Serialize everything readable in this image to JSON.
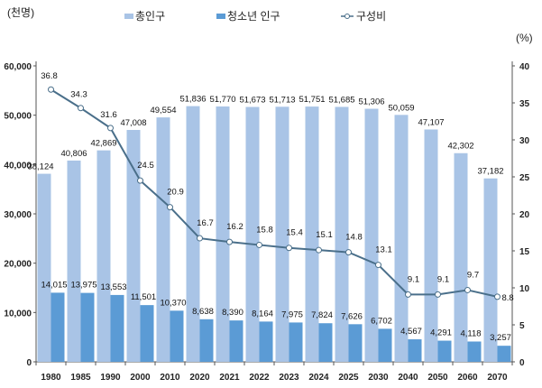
{
  "chart_data": {
    "type": "bar+line",
    "categories": [
      "1980",
      "1985",
      "1990",
      "2000",
      "2010",
      "2020",
      "2021",
      "2022",
      "2023",
      "2024",
      "2025",
      "2030",
      "2040",
      "2050",
      "2060",
      "2070"
    ],
    "series": [
      {
        "name": "총인구",
        "type": "bar",
        "axis": "left",
        "color": "#a9c4e6",
        "values": [
          38124,
          40806,
          42869,
          47008,
          49554,
          51836,
          51770,
          51673,
          51713,
          51751,
          51685,
          51306,
          50059,
          47107,
          42302,
          37182
        ],
        "labels": [
          "38,124",
          "40,806",
          "42,869",
          "47,008",
          "49,554",
          "51,836",
          "51,770",
          "51,673",
          "51,713",
          "51,751",
          "51,685",
          "51,306",
          "50,059",
          "47,107",
          "42,302",
          "37,182"
        ]
      },
      {
        "name": "청소년 인구",
        "type": "bar",
        "axis": "left",
        "color": "#5b9bd5",
        "values": [
          14015,
          13975,
          13553,
          11501,
          10370,
          8638,
          8390,
          8164,
          7975,
          7824,
          7626,
          6702,
          4567,
          4291,
          4118,
          3257
        ],
        "labels": [
          "14,015",
          "13,975",
          "13,553",
          "11,501",
          "10,370",
          "8,638",
          "8,390",
          "8,164",
          "7,975",
          "7,824",
          "7,626",
          "6,702",
          "4,567",
          "4,291",
          "4,118",
          "3,257"
        ]
      },
      {
        "name": "구성비",
        "type": "line",
        "axis": "right",
        "color": "#4a6f8a",
        "values": [
          36.8,
          34.3,
          31.6,
          24.5,
          20.9,
          16.7,
          16.2,
          15.8,
          15.4,
          15.1,
          14.8,
          13.1,
          9.1,
          9.1,
          9.7,
          8.8
        ],
        "labels": [
          "36.8",
          "34.3",
          "31.6",
          "24.5",
          "20.9",
          "16.7",
          "16.2",
          "15.8",
          "15.4",
          "15.1",
          "14.8",
          "13.1",
          "9.1",
          "9.1",
          "9.7",
          "8.8"
        ]
      }
    ],
    "left_axis": {
      "unit": "(천명)",
      "ylim": [
        0,
        60000
      ],
      "ticks": [
        "0",
        "10,000",
        "20,000",
        "30,000",
        "40,000",
        "50,000",
        "60,000"
      ]
    },
    "right_axis": {
      "unit": "(%)",
      "ylim": [
        0,
        40
      ],
      "ticks": [
        "0",
        "5",
        "10",
        "15",
        "20",
        "25",
        "30",
        "35",
        "40"
      ]
    },
    "legend_placement": "top",
    "grid": false
  }
}
